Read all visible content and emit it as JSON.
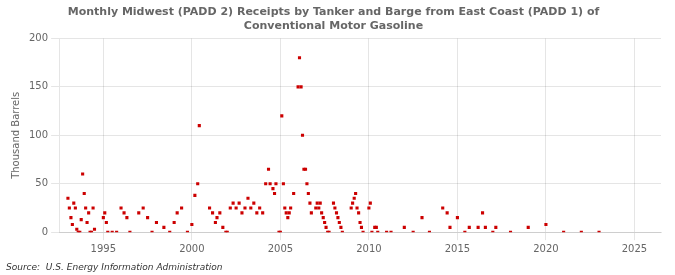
{
  "chart_data": {
    "type": "scatter",
    "title": "Monthly Midwest (PADD 2) Receipts by Tanker and Barge from East Coast (PADD 1) of\nConventional Motor Gasoline",
    "ylabel": "Thousand Barrels",
    "source": "Source:  U.S. Energy Information Administration",
    "color": "#cc0000",
    "marker": "square",
    "grid": true,
    "xlim": [
      1992.5,
      2026.5
    ],
    "ylim": [
      0,
      200
    ],
    "xticks": [
      1995,
      2000,
      2005,
      2010,
      2015,
      2020,
      2025
    ],
    "yticks": [
      0,
      50,
      100,
      150,
      200
    ],
    "x": [
      1993.0,
      1993.08,
      1993.17,
      1993.25,
      1993.33,
      1993.42,
      1993.5,
      1993.58,
      1993.67,
      1993.75,
      1993.83,
      1993.92,
      1994.0,
      1994.08,
      1994.17,
      1994.25,
      1994.33,
      1994.42,
      1994.5,
      1995.0,
      1995.08,
      1995.17,
      1995.25,
      1995.5,
      1995.75,
      1996.0,
      1996.17,
      1996.33,
      1996.5,
      1997.0,
      1997.25,
      1997.5,
      1997.75,
      1998.0,
      1998.42,
      1998.75,
      1999.0,
      1999.17,
      1999.42,
      1999.75,
      2000.0,
      2000.17,
      2000.33,
      2000.42,
      2001.0,
      2001.17,
      2001.33,
      2001.42,
      2001.58,
      2001.75,
      2001.92,
      2002.0,
      2002.17,
      2002.33,
      2002.5,
      2002.67,
      2002.83,
      2003.0,
      2003.17,
      2003.33,
      2003.5,
      2003.67,
      2003.83,
      2004.0,
      2004.17,
      2004.33,
      2004.42,
      2004.58,
      2004.67,
      2004.75,
      2004.92,
      2005.0,
      2005.08,
      2005.17,
      2005.25,
      2005.33,
      2005.42,
      2005.5,
      2005.58,
      2005.75,
      2006.0,
      2006.08,
      2006.17,
      2006.25,
      2006.33,
      2006.42,
      2006.5,
      2006.58,
      2006.67,
      2006.75,
      2007.0,
      2007.08,
      2007.17,
      2007.25,
      2007.33,
      2007.42,
      2007.5,
      2007.58,
      2007.67,
      2007.75,
      2008.0,
      2008.08,
      2008.17,
      2008.25,
      2008.33,
      2008.42,
      2008.5,
      2009.0,
      2009.08,
      2009.17,
      2009.25,
      2009.33,
      2009.42,
      2009.5,
      2009.58,
      2009.67,
      2010.0,
      2010.08,
      2010.17,
      2010.33,
      2010.42,
      2010.5,
      2011.0,
      2011.25,
      2012.0,
      2012.5,
      2013.0,
      2013.42,
      2014.17,
      2014.42,
      2014.58,
      2015.0,
      2015.42,
      2015.67,
      2016.17,
      2016.42,
      2016.58,
      2017.0,
      2017.17,
      2018.0,
      2019.0,
      2020.0,
      2021.0,
      2022.0,
      2023.0
    ],
    "values": [
      35,
      25,
      15,
      8,
      30,
      25,
      3,
      0,
      0,
      13,
      60,
      40,
      25,
      10,
      20,
      0,
      0,
      25,
      3,
      15,
      20,
      10,
      0,
      0,
      0,
      25,
      20,
      15,
      0,
      20,
      25,
      15,
      0,
      10,
      5,
      0,
      10,
      20,
      25,
      0,
      8,
      38,
      50,
      110,
      25,
      20,
      10,
      15,
      20,
      5,
      0,
      0,
      25,
      30,
      25,
      30,
      20,
      25,
      35,
      25,
      30,
      20,
      25,
      20,
      50,
      65,
      50,
      45,
      40,
      50,
      0,
      0,
      120,
      50,
      25,
      20,
      15,
      20,
      25,
      40,
      150,
      180,
      150,
      100,
      65,
      65,
      50,
      40,
      30,
      20,
      25,
      30,
      25,
      30,
      20,
      15,
      10,
      5,
      0,
      0,
      30,
      25,
      20,
      15,
      10,
      5,
      0,
      25,
      30,
      35,
      40,
      25,
      20,
      10,
      5,
      0,
      25,
      30,
      0,
      5,
      5,
      0,
      0,
      0,
      5,
      0,
      15,
      0,
      25,
      20,
      5,
      15,
      0,
      5,
      5,
      20,
      5,
      0,
      5,
      0,
      5,
      8,
      0,
      0,
      0
    ]
  }
}
